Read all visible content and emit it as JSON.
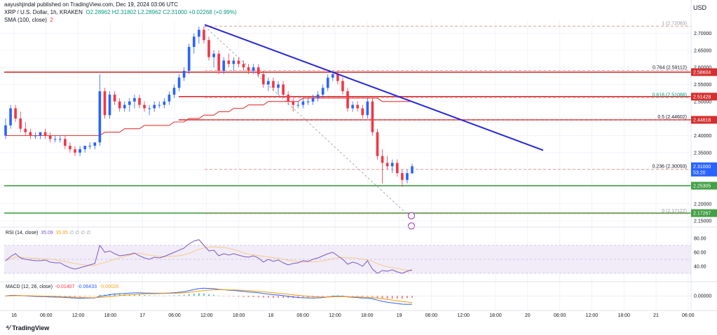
{
  "header": {
    "published": "aayushjindal published on TradingView.com, Dec 19, 2024 03:06 UTC",
    "symbol": "XRP / U.S. Dollar, 1h, KRAKEN",
    "ohlc": "O2.28962 H2.31802 L2.28962 C2.31000 +0.02268 (+0.99%)",
    "sma_label": "SMA (100, close)",
    "sma_value": "2"
  },
  "currency": "USD",
  "logo": "TradingView",
  "colors": {
    "up": "#2962ff",
    "down": "#f23645",
    "sma": "#e53935",
    "trendline": "#2626d9",
    "support": "#43a047",
    "resistance": "#d32f2f",
    "rsi": "#7e57c2",
    "rsi_band": "#ede7f6",
    "macd": "#2962ff",
    "signal": "#ff9800"
  },
  "chart_data": [
    {
      "type": "candlestick",
      "title": "XRP / U.S. Dollar, 1h, KRAKEN",
      "ylim": [
        2.14,
        2.74
      ],
      "y_ticks": [
        "2.70000",
        "2.65000",
        "2.60000",
        "2.55000",
        "2.50000",
        "2.45000",
        "2.40000",
        "2.35000",
        "2.30000",
        "2.25000",
        "2.20000",
        "2.15000"
      ],
      "x_ticks": [
        "16",
        "06:00",
        "12:00",
        "18:00",
        "17",
        "06:00",
        "12:00",
        "18:00",
        "18",
        "06:00",
        "12:00",
        "18:00",
        "19",
        "06:00",
        "12:00",
        "18:00",
        "20",
        "06:00",
        "12:00",
        "18:00",
        "21",
        "06:00"
      ],
      "price_tags": [
        {
          "label": "2.58604",
          "value": 2.58604,
          "color": "#d32f2f"
        },
        {
          "label": "2.51428",
          "value": 2.51428,
          "color": "#d32f2f"
        },
        {
          "label": "2.44618",
          "value": 2.44618,
          "color": "#d32f2f"
        },
        {
          "label": "2.31000",
          "value": 2.31,
          "color": "#2962ff",
          "sub": "53:20"
        },
        {
          "label": "2.25305",
          "value": 2.25305,
          "color": "#43a047"
        },
        {
          "label": "2.17267",
          "value": 2.17267,
          "color": "#43a047"
        }
      ],
      "fib_levels": [
        {
          "label": "1 (2.72083)",
          "value": 2.72083,
          "color": "#9598a1"
        },
        {
          "label": "0.764 (2.59112)",
          "value": 2.59112,
          "color": "#131722"
        },
        {
          "label": "0.618 (2.51088)",
          "value": 2.51088,
          "color": "#089981"
        },
        {
          "label": "0.5 (2.44602)",
          "value": 2.44602,
          "color": "#131722"
        },
        {
          "label": "0.236 (2.30093)",
          "value": 2.30093,
          "color": "#131722"
        },
        {
          "label": "0 (2.17122)",
          "value": 2.17122,
          "color": "#9598a1"
        }
      ],
      "candles": [
        [
          2.4,
          2.45,
          2.39,
          2.43
        ],
        [
          2.43,
          2.49,
          2.42,
          2.48
        ],
        [
          2.48,
          2.49,
          2.44,
          2.45
        ],
        [
          2.45,
          2.47,
          2.41,
          2.42
        ],
        [
          2.42,
          2.44,
          2.4,
          2.41
        ],
        [
          2.41,
          2.42,
          2.39,
          2.4
        ],
        [
          2.4,
          2.41,
          2.39,
          2.4
        ],
        [
          2.4,
          2.41,
          2.39,
          2.41
        ],
        [
          2.41,
          2.42,
          2.39,
          2.4
        ],
        [
          2.4,
          2.41,
          2.38,
          2.39
        ],
        [
          2.39,
          2.4,
          2.38,
          2.39
        ],
        [
          2.39,
          2.4,
          2.38,
          2.39
        ],
        [
          2.39,
          2.4,
          2.36,
          2.37
        ],
        [
          2.37,
          2.38,
          2.35,
          2.36
        ],
        [
          2.36,
          2.37,
          2.34,
          2.35
        ],
        [
          2.35,
          2.37,
          2.34,
          2.36
        ],
        [
          2.36,
          2.37,
          2.35,
          2.37
        ],
        [
          2.37,
          2.38,
          2.36,
          2.37
        ],
        [
          2.37,
          2.38,
          2.36,
          2.38
        ],
        [
          2.38,
          2.58,
          2.37,
          2.53
        ],
        [
          2.53,
          2.54,
          2.45,
          2.46
        ],
        [
          2.46,
          2.53,
          2.45,
          2.52
        ],
        [
          2.52,
          2.53,
          2.49,
          2.5
        ],
        [
          2.5,
          2.51,
          2.47,
          2.48
        ],
        [
          2.48,
          2.5,
          2.47,
          2.49
        ],
        [
          2.49,
          2.51,
          2.47,
          2.5
        ],
        [
          2.5,
          2.52,
          2.48,
          2.51
        ],
        [
          2.51,
          2.52,
          2.48,
          2.49
        ],
        [
          2.49,
          2.5,
          2.47,
          2.48
        ],
        [
          2.48,
          2.49,
          2.46,
          2.48
        ],
        [
          2.48,
          2.5,
          2.47,
          2.49
        ],
        [
          2.49,
          2.5,
          2.48,
          2.49
        ],
        [
          2.49,
          2.51,
          2.48,
          2.5
        ],
        [
          2.5,
          2.53,
          2.49,
          2.52
        ],
        [
          2.52,
          2.55,
          2.51,
          2.54
        ],
        [
          2.54,
          2.58,
          2.53,
          2.57
        ],
        [
          2.57,
          2.6,
          2.56,
          2.59
        ],
        [
          2.59,
          2.67,
          2.58,
          2.66
        ],
        [
          2.66,
          2.7,
          2.64,
          2.69
        ],
        [
          2.69,
          2.72,
          2.67,
          2.71
        ],
        [
          2.71,
          2.72,
          2.67,
          2.68
        ],
        [
          2.68,
          2.69,
          2.62,
          2.63
        ],
        [
          2.63,
          2.65,
          2.6,
          2.64
        ],
        [
          2.64,
          2.65,
          2.58,
          2.59
        ],
        [
          2.59,
          2.63,
          2.58,
          2.62
        ],
        [
          2.62,
          2.64,
          2.6,
          2.61
        ],
        [
          2.61,
          2.63,
          2.59,
          2.62
        ],
        [
          2.62,
          2.63,
          2.6,
          2.61
        ],
        [
          2.61,
          2.62,
          2.59,
          2.6
        ],
        [
          2.6,
          2.61,
          2.58,
          2.59
        ],
        [
          2.59,
          2.61,
          2.58,
          2.6
        ],
        [
          2.6,
          2.61,
          2.57,
          2.58
        ],
        [
          2.58,
          2.59,
          2.54,
          2.55
        ],
        [
          2.55,
          2.57,
          2.53,
          2.56
        ],
        [
          2.56,
          2.57,
          2.53,
          2.54
        ],
        [
          2.54,
          2.56,
          2.52,
          2.55
        ],
        [
          2.55,
          2.56,
          2.51,
          2.52
        ],
        [
          2.52,
          2.53,
          2.49,
          2.5
        ],
        [
          2.5,
          2.51,
          2.47,
          2.49
        ],
        [
          2.49,
          2.5,
          2.48,
          2.49
        ],
        [
          2.49,
          2.51,
          2.48,
          2.5
        ],
        [
          2.5,
          2.51,
          2.49,
          2.5
        ],
        [
          2.5,
          2.52,
          2.49,
          2.51
        ],
        [
          2.51,
          2.53,
          2.5,
          2.52
        ],
        [
          2.52,
          2.55,
          2.51,
          2.54
        ],
        [
          2.54,
          2.58,
          2.53,
          2.57
        ],
        [
          2.57,
          2.59,
          2.56,
          2.58
        ],
        [
          2.58,
          2.59,
          2.55,
          2.56
        ],
        [
          2.56,
          2.57,
          2.52,
          2.53
        ],
        [
          2.53,
          2.54,
          2.47,
          2.48
        ],
        [
          2.48,
          2.5,
          2.47,
          2.49
        ],
        [
          2.49,
          2.5,
          2.47,
          2.48
        ],
        [
          2.48,
          2.49,
          2.45,
          2.46
        ],
        [
          2.46,
          2.51,
          2.45,
          2.5
        ],
        [
          2.5,
          2.51,
          2.4,
          2.41
        ],
        [
          2.41,
          2.42,
          2.33,
          2.34
        ],
        [
          2.34,
          2.36,
          2.26,
          2.32
        ],
        [
          2.32,
          2.34,
          2.3,
          2.31
        ],
        [
          2.31,
          2.33,
          2.29,
          2.32
        ],
        [
          2.32,
          2.33,
          2.28,
          2.29
        ],
        [
          2.29,
          2.3,
          2.25,
          2.27
        ],
        [
          2.27,
          2.3,
          2.26,
          2.29
        ],
        [
          2.289,
          2.318,
          2.289,
          2.31
        ]
      ],
      "sma": [
        2.4,
        2.4,
        2.4,
        2.4,
        2.4,
        2.4,
        2.4,
        2.4,
        2.4,
        2.4,
        2.4,
        2.4,
        2.4,
        2.4,
        2.4,
        2.4,
        2.4,
        2.4,
        2.4,
        2.4,
        2.41,
        2.41,
        2.41,
        2.41,
        2.42,
        2.42,
        2.42,
        2.42,
        2.43,
        2.43,
        2.43,
        2.43,
        2.43,
        2.43,
        2.44,
        2.44,
        2.44,
        2.45,
        2.45,
        2.45,
        2.46,
        2.46,
        2.46,
        2.47,
        2.47,
        2.47,
        2.48,
        2.48,
        2.48,
        2.49,
        2.49,
        2.49,
        2.49,
        2.5,
        2.5,
        2.5,
        2.5,
        2.5,
        2.5,
        2.5,
        2.51,
        2.51,
        2.51,
        2.51,
        2.51,
        2.51,
        2.51,
        2.51,
        2.51,
        2.51,
        2.51,
        2.51,
        2.51,
        2.51,
        2.51,
        2.51,
        2.5,
        2.5,
        2.5,
        2.5,
        2.5,
        2.5,
        2.5
      ]
    },
    {
      "type": "line",
      "title": "RSI (14, close)",
      "value": "35.09",
      "smooth_value": "35.05",
      "ylim": [
        20,
        80
      ],
      "y_ticks": [
        "80.00",
        "60.00",
        "40.00"
      ],
      "band": [
        30,
        70
      ],
      "values": [
        48,
        54,
        58,
        52,
        50,
        49,
        48,
        48,
        49,
        46,
        45,
        45,
        41,
        38,
        36,
        38,
        40,
        42,
        44,
        70,
        60,
        62,
        58,
        55,
        56,
        57,
        59,
        55,
        52,
        50,
        53,
        52,
        54,
        57,
        60,
        63,
        66,
        72,
        76,
        78,
        70,
        62,
        63,
        55,
        58,
        56,
        58,
        56,
        54,
        53,
        55,
        52,
        46,
        50,
        47,
        49,
        45,
        42,
        44,
        45,
        48,
        47,
        50,
        52,
        55,
        58,
        60,
        55,
        50,
        43,
        46,
        44,
        40,
        48,
        36,
        30,
        34,
        33,
        35,
        32,
        30,
        33,
        35
      ]
    },
    {
      "type": "line",
      "title": "MACD (12, 26, close)",
      "values_text": [
        "-0.01407",
        "-0.06433",
        "-0.05026"
      ],
      "y_ticks": [
        "0.00000"
      ],
      "ylim": [
        -0.1,
        0.08
      ]
    }
  ]
}
